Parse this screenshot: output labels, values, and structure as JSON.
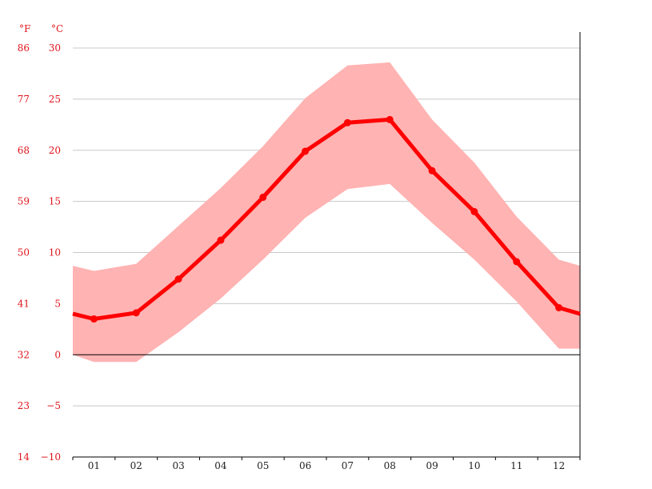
{
  "chart_data": {
    "type": "area",
    "unit_labels": {
      "fahrenheit": "°F",
      "celsius": "°C"
    },
    "categories": [
      "01",
      "02",
      "03",
      "04",
      "05",
      "06",
      "07",
      "08",
      "09",
      "10",
      "11",
      "12"
    ],
    "yticks_c": [
      "30",
      "25",
      "20",
      "15",
      "10",
      "5",
      "0",
      "−5",
      "−10"
    ],
    "yticks_f": [
      "86",
      "77",
      "68",
      "59",
      "50",
      "41",
      "32",
      "23",
      "14"
    ],
    "ylim": [
      -10,
      30
    ],
    "grid": true,
    "series": [
      {
        "name": "",
        "kind": "line",
        "edge_values": [
          4.0,
          4.0
        ],
        "values": [
          3.5,
          4.1,
          7.4,
          11.2,
          15.4,
          19.9,
          22.7,
          23.0,
          18.0,
          14.0,
          9.1,
          4.6
        ]
      },
      {
        "name": "",
        "kind": "band-upper",
        "edge_values": [
          8.7,
          8.7
        ],
        "values": [
          8.2,
          8.9,
          12.6,
          16.3,
          20.4,
          25.1,
          28.3,
          28.6,
          23.0,
          18.8,
          13.5,
          9.3
        ]
      },
      {
        "name": "",
        "kind": "band-lower",
        "edge_values": [
          0.0,
          0.6
        ],
        "values": [
          -0.7,
          -0.7,
          2.2,
          5.5,
          9.3,
          13.4,
          16.2,
          16.7,
          12.9,
          9.3,
          5.2,
          0.6
        ]
      }
    ],
    "colors": {
      "line": "#ff0000",
      "band": "#ffb3b3",
      "tick_text": "#e0141c",
      "grid": "#c8c8c8",
      "axis": "#000000"
    }
  }
}
